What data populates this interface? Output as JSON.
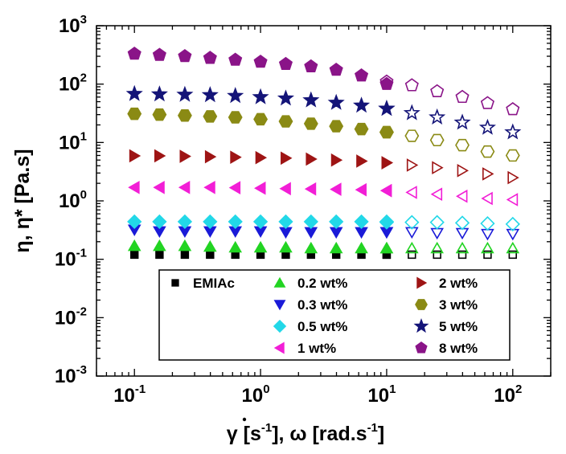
{
  "chart_data": {
    "type": "scatter",
    "x_scale": "log",
    "y_scale": "log",
    "xlim": [
      0.05,
      200
    ],
    "ylim": [
      0.001,
      1000
    ],
    "x_ticks": [
      {
        "base": "10",
        "exp": "-1",
        "value": 0.1
      },
      {
        "base": "10",
        "exp": "0",
        "value": 1
      },
      {
        "base": "10",
        "exp": "1",
        "value": 10
      },
      {
        "base": "10",
        "exp": "2",
        "value": 100
      }
    ],
    "y_ticks": [
      {
        "base": "10",
        "exp": "-3",
        "value": 0.001
      },
      {
        "base": "10",
        "exp": "-2",
        "value": 0.01
      },
      {
        "base": "10",
        "exp": "-1",
        "value": 0.1
      },
      {
        "base": "10",
        "exp": "0",
        "value": 1
      },
      {
        "base": "10",
        "exp": "1",
        "value": 10
      },
      {
        "base": "10",
        "exp": "2",
        "value": 100
      },
      {
        "base": "10",
        "exp": "3",
        "value": 1000
      }
    ],
    "xlabel": {
      "gamma": "γ",
      "part1": " [s",
      "sup1": "-1",
      "part2": "], ω [rad.s",
      "sup2": "-1",
      "part3": "]"
    },
    "ylabel": {
      "text": "η, η* [Pa.s]"
    },
    "legend_position": "bottom-center",
    "x_steady": [
      0.1,
      0.158,
      0.251,
      0.398,
      0.631,
      1.0,
      1.585,
      2.512,
      3.981,
      6.31,
      10.0
    ],
    "x_osc": [
      10.0,
      15.85,
      25.12,
      39.81,
      63.1,
      100.0
    ],
    "series": [
      {
        "name": "EMIAc",
        "marker": "square",
        "color": "#000000",
        "steady": [
          0.12,
          0.12,
          0.12,
          0.12,
          0.12,
          0.12,
          0.12,
          0.12,
          0.12,
          0.12,
          0.12
        ],
        "osc": [
          0.12,
          0.12,
          0.12,
          0.12,
          0.12,
          0.12
        ]
      },
      {
        "name": "0.2 wt%",
        "marker": "triangle-up",
        "color": "#22d422",
        "steady": [
          0.17,
          0.17,
          0.17,
          0.165,
          0.16,
          0.16,
          0.16,
          0.155,
          0.155,
          0.155,
          0.155
        ],
        "osc": [
          0.155,
          0.155,
          0.155,
          0.155,
          0.155,
          0.155
        ]
      },
      {
        "name": "0.3 wt%",
        "marker": "triangle-down",
        "color": "#1a1ad8",
        "steady": [
          0.32,
          0.3,
          0.3,
          0.3,
          0.3,
          0.3,
          0.29,
          0.29,
          0.29,
          0.29,
          0.29
        ],
        "osc": [
          0.29,
          0.29,
          0.28,
          0.28,
          0.27,
          0.27
        ]
      },
      {
        "name": "0.5 wt%",
        "marker": "diamond",
        "color": "#22d8e8",
        "steady": [
          0.44,
          0.44,
          0.44,
          0.44,
          0.44,
          0.44,
          0.44,
          0.44,
          0.44,
          0.44,
          0.44
        ],
        "osc": [
          0.43,
          0.43,
          0.43,
          0.42,
          0.41,
          0.4
        ]
      },
      {
        "name": "1 wt%",
        "marker": "triangle-left",
        "color": "#f21ed6",
        "steady": [
          1.7,
          1.7,
          1.7,
          1.7,
          1.68,
          1.65,
          1.62,
          1.6,
          1.58,
          1.55,
          1.5
        ],
        "osc": [
          1.5,
          1.4,
          1.3,
          1.2,
          1.1,
          1.05
        ]
      },
      {
        "name": "2 wt%",
        "marker": "triangle-right",
        "color": "#9e1414",
        "steady": [
          5.9,
          5.9,
          5.8,
          5.7,
          5.6,
          5.5,
          5.4,
          5.2,
          5.0,
          4.8,
          4.5
        ],
        "osc": [
          4.5,
          4.1,
          3.7,
          3.3,
          2.9,
          2.5
        ]
      },
      {
        "name": "3 wt%",
        "marker": "hexagon",
        "color": "#8a8a14",
        "steady": [
          31,
          30,
          29,
          28,
          27,
          25,
          23,
          21,
          19,
          17,
          15
        ],
        "osc": [
          15,
          13,
          11,
          9,
          7,
          6
        ]
      },
      {
        "name": "5 wt%",
        "marker": "star",
        "color": "#141478",
        "steady": [
          68,
          67,
          66,
          65,
          63,
          60,
          57,
          53,
          48,
          43,
          38
        ],
        "osc": [
          38,
          32,
          27,
          22,
          18,
          15
        ]
      },
      {
        "name": "8 wt%",
        "marker": "pentagon",
        "color": "#8a1488",
        "steady": [
          330,
          315,
          300,
          280,
          260,
          240,
          220,
          200,
          175,
          140,
          100
        ],
        "osc": [
          110,
          95,
          75,
          60,
          47,
          37
        ]
      }
    ]
  }
}
